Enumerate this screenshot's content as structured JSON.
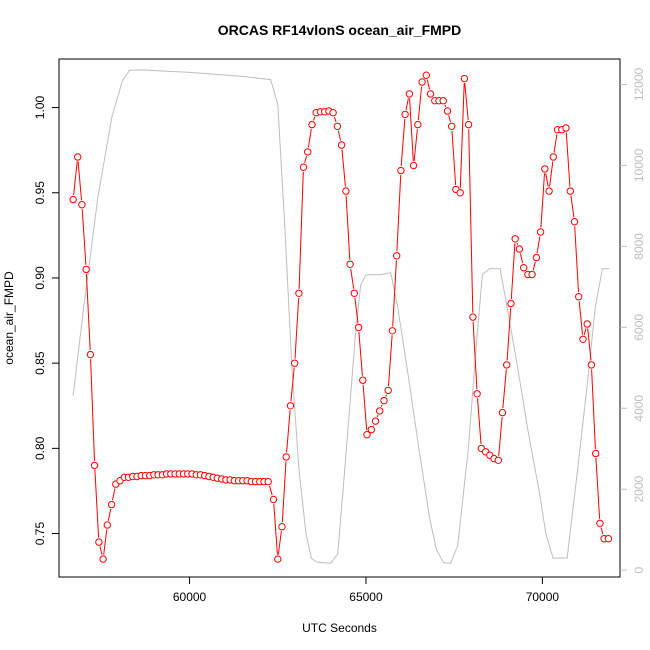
{
  "chart_data": {
    "type": "line",
    "title": "ORCAS RF14vlonS ocean_air_FMPD",
    "xlabel": "UTC Seconds",
    "ylabel": "ocean_air_FMPD",
    "xlim": [
      56300,
      72200
    ],
    "ylim": [
      0.7245,
      1.0285
    ],
    "y2lim": [
      -170,
      12630
    ],
    "x_ticks": [
      60000,
      65000,
      70000
    ],
    "x_tick_labels": [
      "60000",
      "65000",
      "70000"
    ],
    "y_ticks": [
      0.75,
      0.8,
      0.85,
      0.9,
      0.95,
      1.0
    ],
    "y_tick_labels": [
      "0.75",
      "0.80",
      "0.85",
      "0.90",
      "0.95",
      "1.00"
    ],
    "y2_ticks": [
      0,
      2000,
      4000,
      6000,
      8000,
      10000,
      12000
    ],
    "y2_tick_labels": [
      "0",
      "2000",
      "4000",
      "6000",
      "8000",
      "10000",
      "12000"
    ],
    "grid": false,
    "legend": "none",
    "colors": {
      "primary_series": "#ff0000",
      "secondary_series": "#bebebe",
      "axes": "#000000"
    },
    "series": [
      {
        "axis": "left",
        "style": "line-with-open-circles",
        "points": [
          [
            56700,
            0.946
          ],
          [
            56830,
            0.971
          ],
          [
            56950,
            0.943
          ],
          [
            57070,
            0.905
          ],
          [
            57190,
            0.855
          ],
          [
            57310,
            0.79
          ],
          [
            57430,
            0.745
          ],
          [
            57550,
            0.735
          ],
          [
            57670,
            0.755
          ],
          [
            57790,
            0.767
          ],
          [
            57910,
            0.779
          ],
          [
            58030,
            0.781
          ],
          [
            58150,
            0.783
          ],
          [
            58270,
            0.783
          ],
          [
            58390,
            0.7835
          ],
          [
            58510,
            0.7835
          ],
          [
            58630,
            0.784
          ],
          [
            58750,
            0.784
          ],
          [
            58870,
            0.784
          ],
          [
            58990,
            0.7845
          ],
          [
            59110,
            0.7845
          ],
          [
            59230,
            0.7845
          ],
          [
            59350,
            0.785
          ],
          [
            59470,
            0.785
          ],
          [
            59590,
            0.785
          ],
          [
            59710,
            0.785
          ],
          [
            59830,
            0.785
          ],
          [
            59950,
            0.785
          ],
          [
            60070,
            0.785
          ],
          [
            60190,
            0.7845
          ],
          [
            60310,
            0.7845
          ],
          [
            60430,
            0.784
          ],
          [
            60550,
            0.7835
          ],
          [
            60670,
            0.783
          ],
          [
            60790,
            0.7825
          ],
          [
            60910,
            0.782
          ],
          [
            61030,
            0.7815
          ],
          [
            61150,
            0.7815
          ],
          [
            61270,
            0.781
          ],
          [
            61390,
            0.781
          ],
          [
            61510,
            0.781
          ],
          [
            61630,
            0.781
          ],
          [
            61750,
            0.7805
          ],
          [
            61870,
            0.7805
          ],
          [
            61990,
            0.7805
          ],
          [
            62110,
            0.7805
          ],
          [
            62230,
            0.7805
          ],
          [
            62380,
            0.77
          ],
          [
            62500,
            0.735
          ],
          [
            62620,
            0.754
          ],
          [
            62740,
            0.795
          ],
          [
            62860,
            0.825
          ],
          [
            62980,
            0.85
          ],
          [
            63100,
            0.891
          ],
          [
            63230,
            0.965
          ],
          [
            63350,
            0.974
          ],
          [
            63470,
            0.99
          ],
          [
            63590,
            0.997
          ],
          [
            63710,
            0.9975
          ],
          [
            63830,
            0.9975
          ],
          [
            63950,
            0.998
          ],
          [
            64070,
            0.997
          ],
          [
            64190,
            0.989
          ],
          [
            64310,
            0.978
          ],
          [
            64430,
            0.951
          ],
          [
            64550,
            0.908
          ],
          [
            64670,
            0.891
          ],
          [
            64790,
            0.871
          ],
          [
            64910,
            0.84
          ],
          [
            65030,
            0.808
          ],
          [
            65150,
            0.811
          ],
          [
            65270,
            0.816
          ],
          [
            65390,
            0.822
          ],
          [
            65510,
            0.828
          ],
          [
            65630,
            0.834
          ],
          [
            65750,
            0.869
          ],
          [
            65870,
            0.913
          ],
          [
            65990,
            0.963
          ],
          [
            66110,
            0.996
          ],
          [
            66230,
            1.008
          ],
          [
            66350,
            0.966
          ],
          [
            66470,
            0.99
          ],
          [
            66590,
            1.015
          ],
          [
            66710,
            1.019
          ],
          [
            66830,
            1.008
          ],
          [
            66950,
            1.004
          ],
          [
            67070,
            1.004
          ],
          [
            67190,
            1.004
          ],
          [
            67310,
            0.998
          ],
          [
            67430,
            0.989
          ],
          [
            67550,
            0.952
          ],
          [
            67670,
            0.95
          ],
          [
            67790,
            1.017
          ],
          [
            67910,
            0.99
          ],
          [
            68030,
            0.877
          ],
          [
            68150,
            0.832
          ],
          [
            68270,
            0.8
          ],
          [
            68390,
            0.798
          ],
          [
            68510,
            0.796
          ],
          [
            68630,
            0.794
          ],
          [
            68750,
            0.793
          ],
          [
            68870,
            0.821
          ],
          [
            68990,
            0.849
          ],
          [
            69110,
            0.885
          ],
          [
            69230,
            0.923
          ],
          [
            69350,
            0.917
          ],
          [
            69470,
            0.906
          ],
          [
            69590,
            0.902
          ],
          [
            69710,
            0.902
          ],
          [
            69830,
            0.912
          ],
          [
            69950,
            0.927
          ],
          [
            70070,
            0.964
          ],
          [
            70190,
            0.951
          ],
          [
            70310,
            0.971
          ],
          [
            70430,
            0.987
          ],
          [
            70550,
            0.987
          ],
          [
            70670,
            0.988
          ],
          [
            70790,
            0.951
          ],
          [
            70910,
            0.933
          ],
          [
            71030,
            0.889
          ],
          [
            71150,
            0.864
          ],
          [
            71270,
            0.873
          ],
          [
            71390,
            0.849
          ],
          [
            71510,
            0.797
          ],
          [
            71630,
            0.756
          ],
          [
            71750,
            0.747
          ],
          [
            71870,
            0.747
          ]
        ]
      },
      {
        "axis": "right",
        "style": "line",
        "points": [
          [
            56700,
            4300
          ],
          [
            57000,
            6500
          ],
          [
            57400,
            9200
          ],
          [
            57800,
            11200
          ],
          [
            58100,
            12100
          ],
          [
            58300,
            12350
          ],
          [
            58600,
            12360
          ],
          [
            60000,
            12300
          ],
          [
            61500,
            12200
          ],
          [
            62300,
            12120
          ],
          [
            62500,
            11500
          ],
          [
            62700,
            8500
          ],
          [
            62900,
            5000
          ],
          [
            63100,
            2500
          ],
          [
            63300,
            900
          ],
          [
            63450,
            300
          ],
          [
            63600,
            200
          ],
          [
            63800,
            180
          ],
          [
            64000,
            170
          ],
          [
            64200,
            400
          ],
          [
            64400,
            2500
          ],
          [
            64700,
            5800
          ],
          [
            64850,
            7050
          ],
          [
            65000,
            7300
          ],
          [
            65400,
            7300
          ],
          [
            65700,
            7350
          ],
          [
            65900,
            6500
          ],
          [
            66200,
            4800
          ],
          [
            66500,
            3000
          ],
          [
            66800,
            1300
          ],
          [
            67000,
            500
          ],
          [
            67200,
            180
          ],
          [
            67400,
            170
          ],
          [
            67600,
            600
          ],
          [
            67900,
            3000
          ],
          [
            68150,
            5800
          ],
          [
            68300,
            7300
          ],
          [
            68500,
            7450
          ],
          [
            68800,
            7450
          ],
          [
            69000,
            6500
          ],
          [
            69300,
            5000
          ],
          [
            69600,
            3400
          ],
          [
            69900,
            2000
          ],
          [
            70100,
            900
          ],
          [
            70300,
            300
          ],
          [
            70500,
            300
          ],
          [
            70700,
            300
          ],
          [
            71000,
            2500
          ],
          [
            71300,
            4800
          ],
          [
            71500,
            6500
          ],
          [
            71700,
            7450
          ],
          [
            71900,
            7450
          ]
        ]
      }
    ]
  }
}
